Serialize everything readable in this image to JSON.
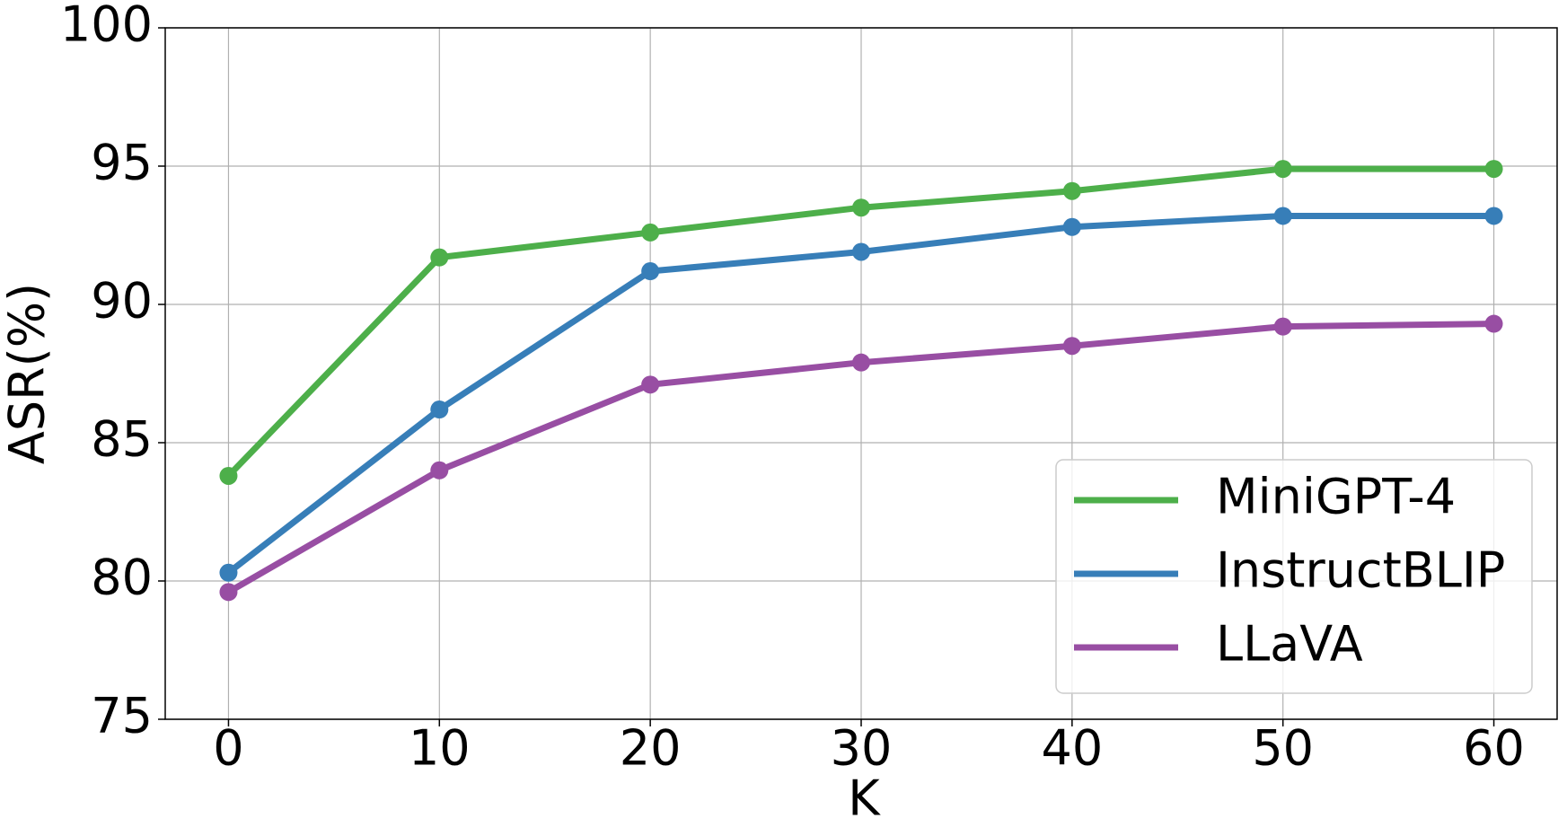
{
  "chart_data": {
    "type": "line",
    "x_label": "K",
    "y_label": "ASR(%)",
    "x": [
      0,
      10,
      20,
      30,
      40,
      50,
      60
    ],
    "series": [
      {
        "name": "MiniGPT-4",
        "color": "#4daf4a",
        "values": [
          83.8,
          91.7,
          92.6,
          93.5,
          94.1,
          94.9,
          94.9
        ]
      },
      {
        "name": "InstructBLIP",
        "color": "#377eb8",
        "values": [
          80.3,
          86.2,
          91.2,
          91.9,
          92.8,
          93.2,
          93.2
        ]
      },
      {
        "name": "LLaVA",
        "color": "#984ea3",
        "values": [
          79.6,
          84.0,
          87.1,
          87.9,
          88.5,
          89.2,
          89.3
        ]
      }
    ],
    "xlim": [
      -3,
      63
    ],
    "xticks": [
      0,
      10,
      20,
      30,
      40,
      50,
      60
    ],
    "ylim": [
      75,
      100
    ],
    "yticks": [
      75,
      80,
      85,
      90,
      95,
      100
    ],
    "grid": true,
    "legend": "lower right"
  }
}
